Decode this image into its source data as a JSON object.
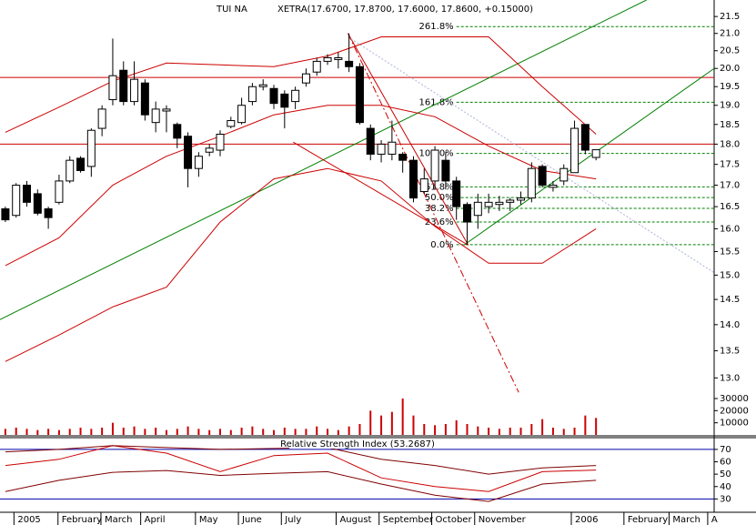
{
  "chart_data": {
    "type": "candlestick",
    "title": "TUI NA",
    "subtitle": "XETRA(17.6700, 17.8700, 17.6000, 17.8600, +0.15000)",
    "ylog": true,
    "ylim": [
      12.6,
      22.0
    ],
    "yticks": [
      {
        "value": 13,
        "label": "13.0"
      },
      {
        "value": 13.5,
        "label": "13.5"
      },
      {
        "value": 14,
        "label": "14.0"
      },
      {
        "value": 14.5,
        "label": "14.5"
      },
      {
        "value": 15,
        "label": "15.0"
      },
      {
        "value": 15.5,
        "label": "15.5"
      },
      {
        "value": 16,
        "label": "16.0"
      },
      {
        "value": 16.5,
        "label": "16.5"
      },
      {
        "value": 17,
        "label": "17.0"
      },
      {
        "value": 17.5,
        "label": "17.5"
      },
      {
        "value": 18,
        "label": "18.0"
      },
      {
        "value": 18.5,
        "label": "18.5"
      },
      {
        "value": 19,
        "label": "19.0"
      },
      {
        "value": 19.5,
        "label": "19.5"
      },
      {
        "value": 20,
        "label": "20.0"
      },
      {
        "value": 20.5,
        "label": "20.5"
      },
      {
        "value": 21,
        "label": "21.0"
      },
      {
        "value": 21.5,
        "label": "21.5"
      }
    ],
    "xlim": [
      -0.5,
      66
    ],
    "xticks": [
      {
        "value": 0.8,
        "label": "2005"
      },
      {
        "value": 4.9,
        "label": "February"
      },
      {
        "value": 8.9,
        "label": "March"
      },
      {
        "value": 12.6,
        "label": "April"
      },
      {
        "value": 17.7,
        "label": "May"
      },
      {
        "value": 21.7,
        "label": "June"
      },
      {
        "value": 25.7,
        "label": "July"
      },
      {
        "value": 30.8,
        "label": "August"
      },
      {
        "value": 34.8,
        "label": "September"
      },
      {
        "value": 39.7,
        "label": "October"
      },
      {
        "value": 43.7,
        "label": "November"
      },
      {
        "value": 52.7,
        "label": "2006"
      },
      {
        "value": 57.6,
        "label": "February"
      },
      {
        "value": 61.8,
        "label": "March"
      },
      {
        "value": 65.4,
        "label": "A"
      }
    ],
    "up_color": "#ffffff",
    "down_color": "#000000",
    "open": [
      16.45,
      16.3,
      17.0,
      16.8,
      16.45,
      16.6,
      17.1,
      17.65,
      17.45,
      18.4,
      19.15,
      19.95,
      19.1,
      19.6,
      18.55,
      18.85,
      18.5,
      18.2,
      17.4,
      17.8,
      17.85,
      18.45,
      18.55,
      19.1,
      19.5,
      19.45,
      19.3,
      19.1,
      19.6,
      19.9,
      20.2,
      20.25,
      20.2,
      20.05,
      18.4,
      17.75,
      17.75,
      17.75,
      17.6,
      16.85,
      17.1,
      17.6,
      17.1,
      16.55,
      16.3,
      16.5,
      16.55,
      16.6,
      16.65,
      16.7,
      17.45,
      16.95,
      17.1,
      17.3,
      18.5,
      17.67
    ],
    "high": [
      16.5,
      17.05,
      17.1,
      16.9,
      16.5,
      17.25,
      17.7,
      17.7,
      18.4,
      19.0,
      20.85,
      20.2,
      20.2,
      19.7,
      19.1,
      19.0,
      18.55,
      18.3,
      17.8,
      18.0,
      18.35,
      18.7,
      19.2,
      19.6,
      19.7,
      19.55,
      19.4,
      19.5,
      20.0,
      20.3,
      20.4,
      20.45,
      21.0,
      20.15,
      18.5,
      18.1,
      18.6,
      17.8,
      17.7,
      17.4,
      17.95,
      17.8,
      17.2,
      16.6,
      16.8,
      16.8,
      16.75,
      16.7,
      16.85,
      17.55,
      17.5,
      17.1,
      17.5,
      18.6,
      18.5,
      17.87
    ],
    "low": [
      16.15,
      16.25,
      16.5,
      16.3,
      16.0,
      16.55,
      17.05,
      17.3,
      17.2,
      18.2,
      19.0,
      19.0,
      19.0,
      18.6,
      18.3,
      18.3,
      17.9,
      16.95,
      17.2,
      17.7,
      17.7,
      18.4,
      18.5,
      19.0,
      19.4,
      18.9,
      18.4,
      18.9,
      19.5,
      19.8,
      20.1,
      20.0,
      19.9,
      18.5,
      17.6,
      17.55,
      17.6,
      17.3,
      16.6,
      16.8,
      16.9,
      16.9,
      16.2,
      15.65,
      16.0,
      16.35,
      16.4,
      16.4,
      16.55,
      16.6,
      16.95,
      16.85,
      17.0,
      17.3,
      17.75,
      17.6
    ],
    "close": [
      16.2,
      17.0,
      16.6,
      16.35,
      16.25,
      17.1,
      17.6,
      17.35,
      18.35,
      18.9,
      19.8,
      19.1,
      19.7,
      18.75,
      18.9,
      18.9,
      18.15,
      17.4,
      17.7,
      17.9,
      18.25,
      18.6,
      19.0,
      19.5,
      19.55,
      19.05,
      18.95,
      19.4,
      19.85,
      20.2,
      20.3,
      20.3,
      20.05,
      18.55,
      17.75,
      18.0,
      18.05,
      17.6,
      16.7,
      17.15,
      17.85,
      17.1,
      16.5,
      16.15,
      16.6,
      16.6,
      16.6,
      16.65,
      16.7,
      17.4,
      17.0,
      17.0,
      17.4,
      18.4,
      17.85,
      17.86
    ],
    "band_x": [
      0,
      5,
      10,
      15,
      20,
      25,
      30,
      35,
      40,
      45,
      50,
      55
    ],
    "lines": [
      {
        "color": "#cc0000",
        "values": [
          18.3,
          18.95,
          19.65,
          20.15,
          20.1,
          20.05,
          20.35,
          20.9,
          20.9,
          20.9,
          19.5,
          18.25
        ]
      },
      {
        "color": "#cc0000",
        "values": [
          15.2,
          15.8,
          17.0,
          17.7,
          18.2,
          18.75,
          19.0,
          19.0,
          18.7,
          17.95,
          17.35,
          17.15
        ]
      },
      {
        "color": "#cc0000",
        "values": [
          13.3,
          13.8,
          14.35,
          14.75,
          16.15,
          17.15,
          17.4,
          17.1,
          16.05,
          15.25,
          15.25,
          16.0
        ]
      }
    ],
    "hlines": {
      "color": "#cc0000",
      "values": [
        19.75,
        18.0
      ]
    },
    "trendlines": [
      {
        "color": "#008000",
        "x": [
          -0.5,
          59.7
        ],
        "values": [
          14.1,
          22.0
        ]
      },
      {
        "color": "#008000",
        "x": [
          42.7,
          66
        ],
        "values": [
          15.64,
          20.0
        ]
      },
      {
        "color": "#cc0000",
        "x": [
          31.9,
          43.1
        ],
        "values": [
          21.0,
          15.64
        ]
      },
      {
        "color": "#cc0000",
        "x": [
          26.8,
          43.1
        ],
        "values": [
          18.05,
          15.64
        ]
      },
      {
        "color": "#cc0000",
        "dash": "8 3 2 3",
        "x": [
          31.9,
          47.8
        ],
        "values": [
          21.0,
          12.74
        ]
      },
      {
        "color": "#aab4d8",
        "dash": "2 2",
        "x": [
          31.9,
          66
        ],
        "values": [
          20.9,
          15.05
        ]
      }
    ],
    "fib": {
      "color": "#008000",
      "low": 15.65,
      "high": 17.77,
      "x_from": 42,
      "levels": [
        261.8,
        161.8,
        100,
        61.8,
        50,
        38.2,
        23.6,
        0
      ],
      "level_labels": [
        "261.8%",
        "161.8%",
        "100.0%",
        "61.8%",
        "50.0%",
        "38.2%",
        "23.6%",
        "0.0%"
      ]
    },
    "volume": {
      "color": "#cc0000",
      "ylim": [
        0,
        33000
      ],
      "yticks": [
        10000,
        20000,
        30000
      ],
      "values": [
        5000,
        6000,
        5000,
        4000,
        5000,
        4000,
        5000,
        6000,
        5000,
        6000,
        10000,
        6000,
        7000,
        5000,
        6000,
        4000,
        5000,
        7000,
        5000,
        4000,
        5000,
        4000,
        6000,
        7000,
        5000,
        4000,
        6000,
        5000,
        5000,
        7000,
        5000,
        4000,
        7000,
        9000,
        20000,
        16000,
        19000,
        30000,
        16000,
        9000,
        8000,
        9000,
        12000,
        9000,
        7000,
        6000,
        5000,
        6000,
        6000,
        9000,
        13000,
        6000,
        5000,
        6000,
        16000,
        14000
      ]
    },
    "rsi": {
      "title": "Relative Strength Index (53.2687)",
      "ylim": [
        20,
        78
      ],
      "yticks": [
        30,
        40,
        50,
        60,
        70
      ],
      "ref_color": "#0000aa",
      "ref_lines": [
        70,
        30
      ],
      "series": [
        {
          "color": "#cc0000",
          "values": [
            57,
            62,
            73,
            67,
            52,
            65,
            67,
            47,
            40,
            36,
            52,
            53.3
          ]
        },
        {
          "color": "#800000",
          "values": [
            68,
            70,
            73,
            71.5,
            70,
            70.7,
            71.5,
            62,
            57,
            50,
            55,
            57
          ]
        },
        {
          "color": "#800000",
          "values": [
            36,
            45,
            51.5,
            53,
            49,
            50.7,
            52,
            42,
            33,
            28,
            42,
            45
          ]
        }
      ]
    }
  }
}
